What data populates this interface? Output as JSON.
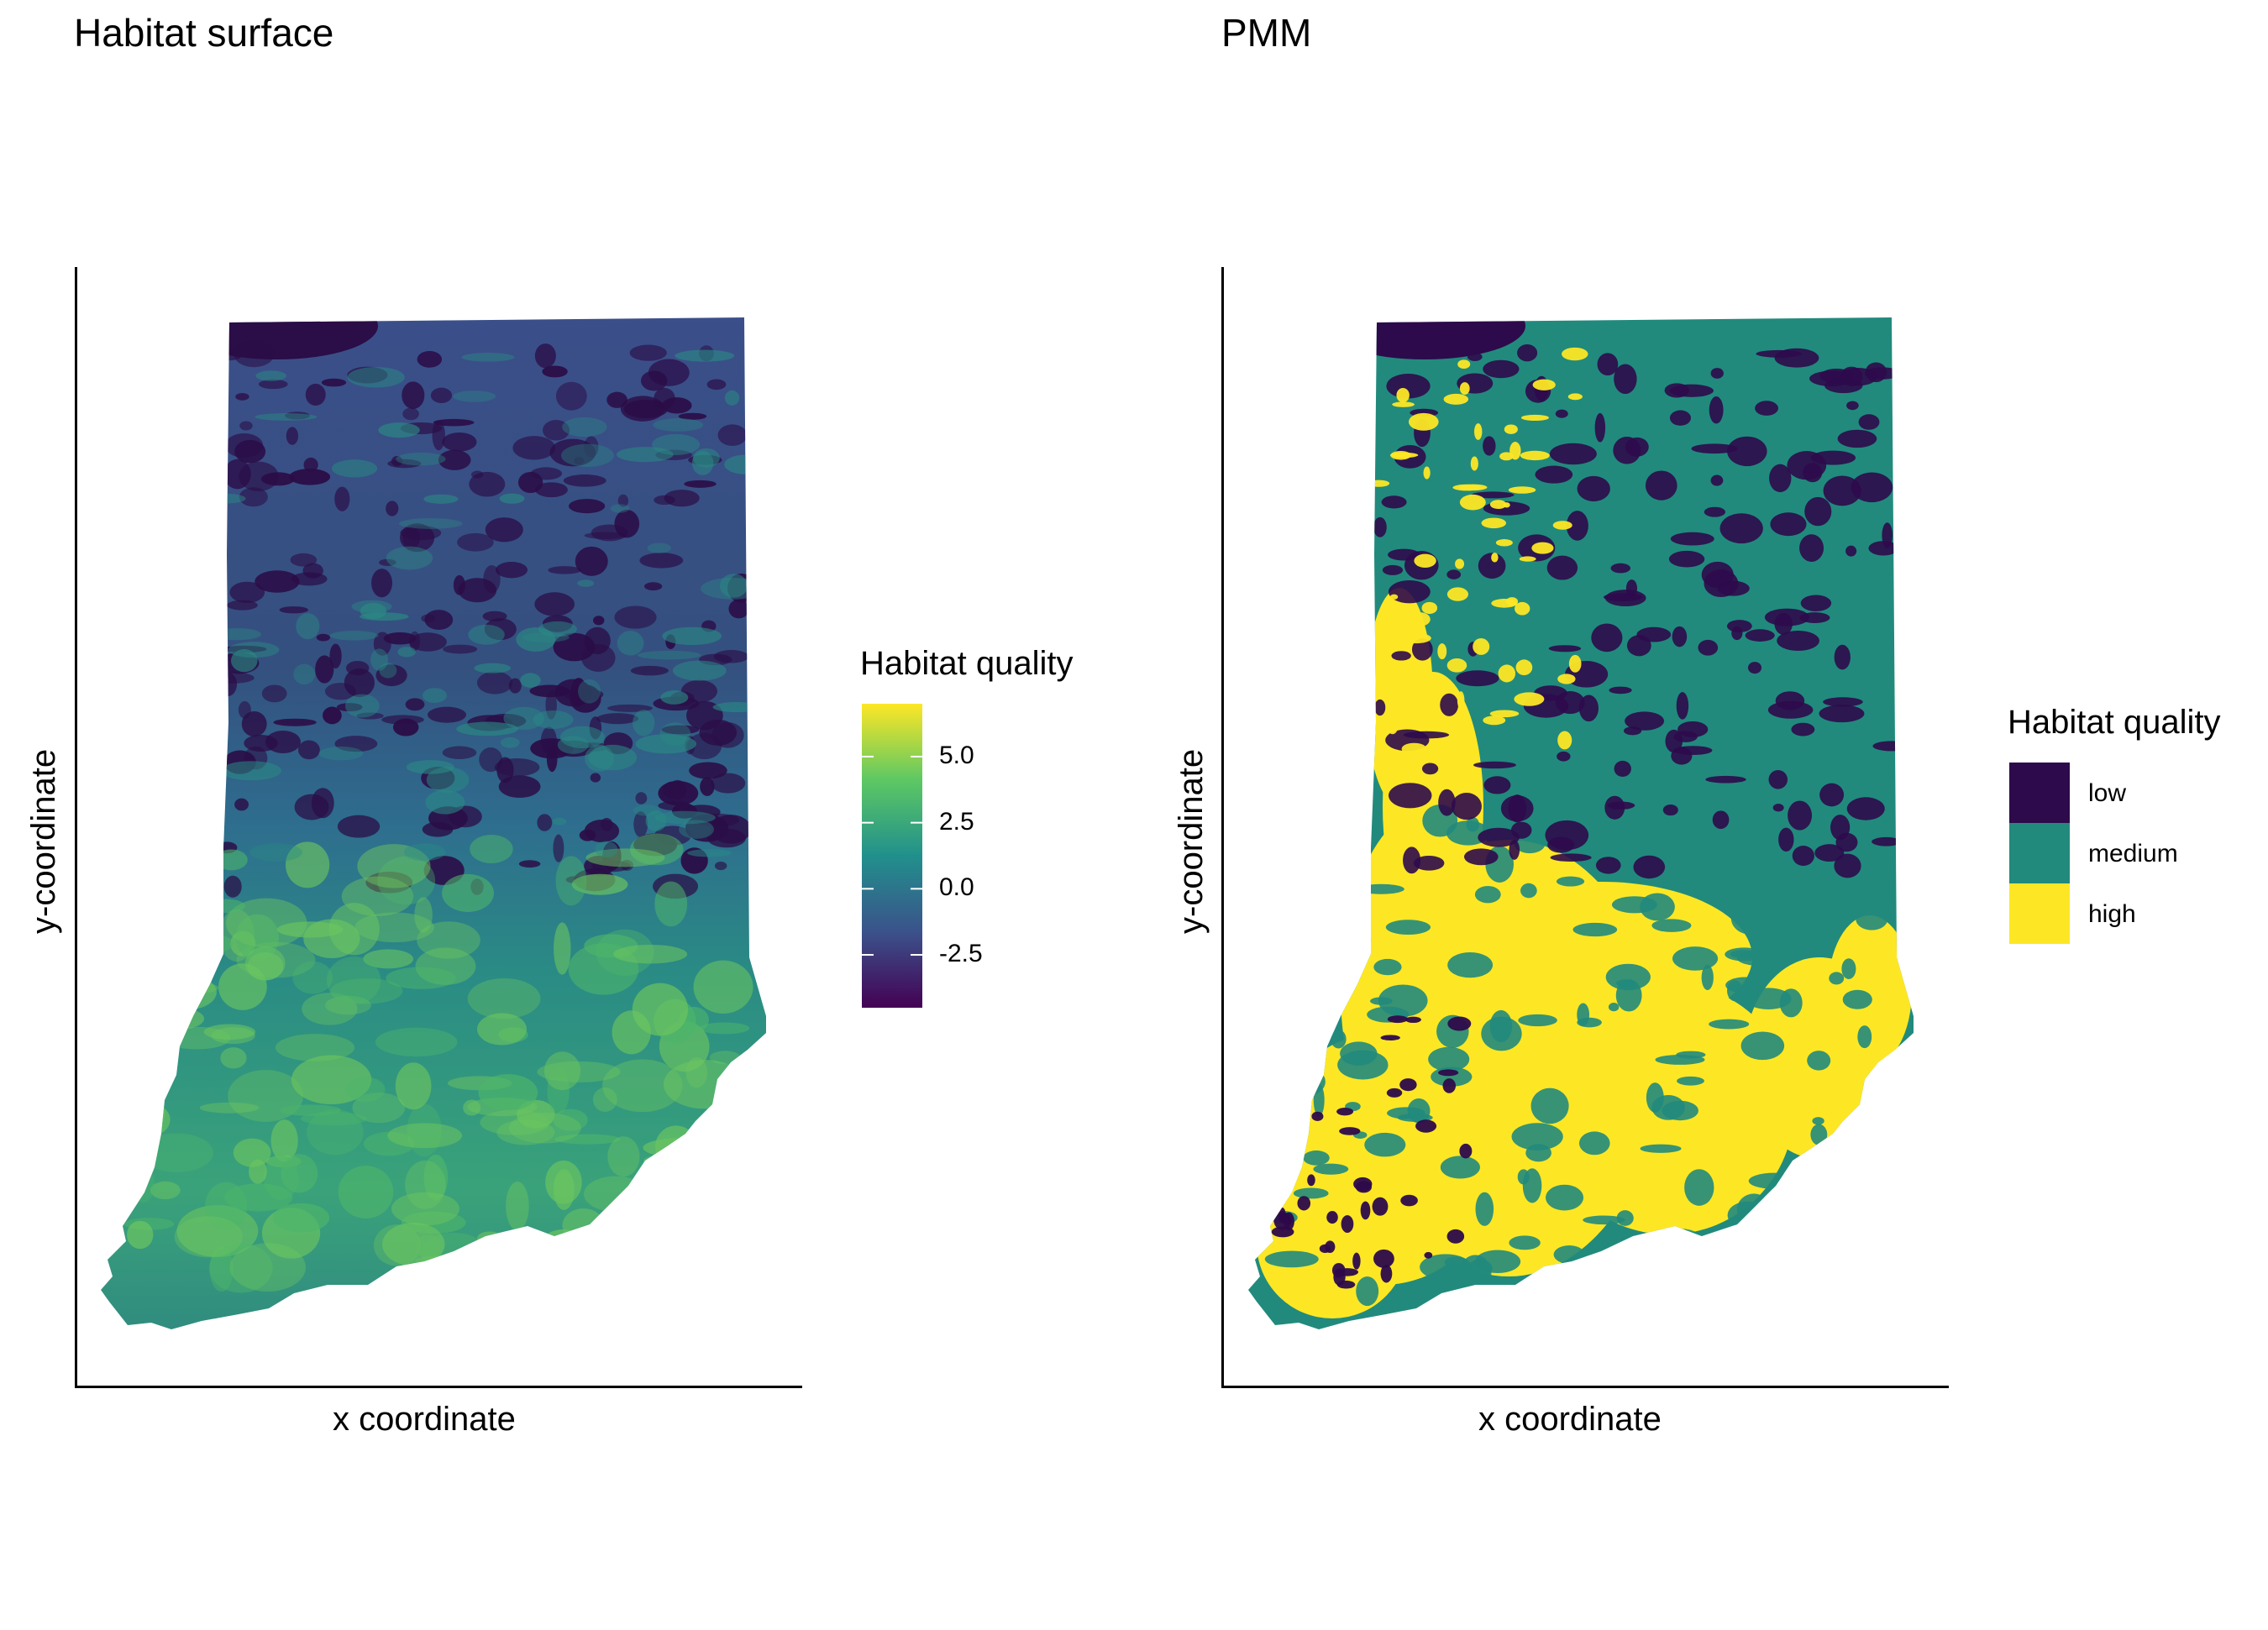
{
  "panels": [
    {
      "title": "Habitat surface",
      "xlabel": "x coordinate",
      "ylabel": "y-coordinate",
      "legend": {
        "title": "Habitat quality",
        "type": "continuous",
        "palette": [
          "#440154",
          "#3b528b",
          "#21908c",
          "#5dc863",
          "#fde725"
        ],
        "range": [
          -4.5,
          7
        ],
        "ticks": [
          {
            "value": 5.0,
            "label": "5.0"
          },
          {
            "value": 2.5,
            "label": "2.5"
          },
          {
            "value": 0.0,
            "label": "0.0"
          },
          {
            "value": -2.5,
            "label": "-2.5"
          }
        ]
      }
    },
    {
      "title": "PMM",
      "xlabel": "x coordinate",
      "ylabel": "y-coordinate",
      "legend": {
        "title": "Habitat quality",
        "type": "categorical",
        "items": [
          {
            "label": "low",
            "color": "#2d0a4b"
          },
          {
            "label": "medium",
            "color": "#218a7d"
          },
          {
            "label": "high",
            "color": "#fde725"
          }
        ]
      }
    }
  ]
}
